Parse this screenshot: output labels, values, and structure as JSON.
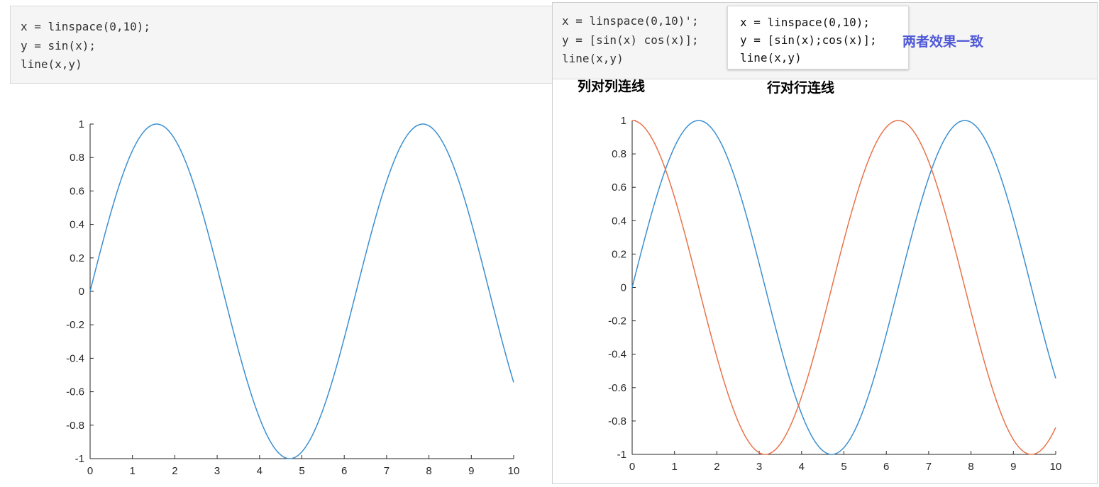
{
  "left_snippet": {
    "lines": [
      "x = linspace(0,10);",
      "y = sin(x);",
      "line(x,y)"
    ]
  },
  "right_snippet": {
    "lines": [
      "x = linspace(0,10)';",
      "y = [sin(x) cos(x)];",
      "line(x,y)"
    ]
  },
  "popup_snippet": {
    "lines": [
      "x = linspace(0,10);",
      "y = [sin(x);cos(x)];",
      "line(x,y)"
    ]
  },
  "annotations": {
    "same_effect": "两者效果一致",
    "col_to_col": "列对列连线",
    "row_to_row": "行对行连线"
  },
  "colors": {
    "sin": "#3b8fd0",
    "cos": "#e8734a"
  },
  "chart_data": [
    {
      "type": "line",
      "title": "",
      "xlabel": "",
      "ylabel": "",
      "xlim": [
        0,
        10
      ],
      "ylim": [
        -1,
        1
      ],
      "x_ticks": [
        "0",
        "1",
        "2",
        "3",
        "4",
        "5",
        "6",
        "7",
        "8",
        "9",
        "10"
      ],
      "y_ticks": [
        "-1",
        "-0.8",
        "-0.6",
        "-0.4",
        "-0.2",
        "0",
        "0.2",
        "0.4",
        "0.6",
        "0.8",
        "1"
      ],
      "grid": false,
      "series": [
        {
          "function": "sin",
          "color": "#3b8fd0",
          "x": [
            0,
            0.5,
            1,
            1.5,
            2,
            2.5,
            3,
            3.5,
            4,
            4.5,
            5,
            5.5,
            6,
            6.5,
            7,
            7.5,
            8,
            8.5,
            9,
            9.5,
            10
          ],
          "y": [
            0,
            0.479,
            0.841,
            0.997,
            0.909,
            0.598,
            0.141,
            -0.351,
            -0.757,
            -0.978,
            -0.959,
            -0.706,
            -0.279,
            0.215,
            0.657,
            0.938,
            0.989,
            0.798,
            0.412,
            -0.075,
            -0.544
          ]
        }
      ]
    },
    {
      "type": "line",
      "title": "",
      "xlabel": "",
      "ylabel": "",
      "xlim": [
        0,
        10
      ],
      "ylim": [
        -1,
        1
      ],
      "x_ticks": [
        "0",
        "1",
        "2",
        "3",
        "4",
        "5",
        "6",
        "7",
        "8",
        "9",
        "10"
      ],
      "y_ticks": [
        "-1",
        "-0.8",
        "-0.6",
        "-0.4",
        "-0.2",
        "0",
        "0.2",
        "0.4",
        "0.6",
        "0.8",
        "1"
      ],
      "grid": false,
      "series": [
        {
          "function": "sin",
          "color": "#3b8fd0",
          "x": [
            0,
            0.5,
            1,
            1.5,
            2,
            2.5,
            3,
            3.5,
            4,
            4.5,
            5,
            5.5,
            6,
            6.5,
            7,
            7.5,
            8,
            8.5,
            9,
            9.5,
            10
          ],
          "y": [
            0,
            0.479,
            0.841,
            0.997,
            0.909,
            0.598,
            0.141,
            -0.351,
            -0.757,
            -0.978,
            -0.959,
            -0.706,
            -0.279,
            0.215,
            0.657,
            0.938,
            0.989,
            0.798,
            0.412,
            -0.075,
            -0.544
          ]
        },
        {
          "function": "cos",
          "color": "#e8734a",
          "x": [
            0,
            0.5,
            1,
            1.5,
            2,
            2.5,
            3,
            3.5,
            4,
            4.5,
            5,
            5.5,
            6,
            6.5,
            7,
            7.5,
            8,
            8.5,
            9,
            9.5,
            10
          ],
          "y": [
            1,
            0.878,
            0.54,
            0.071,
            -0.416,
            -0.801,
            -0.99,
            -0.936,
            -0.654,
            -0.211,
            0.284,
            0.709,
            0.96,
            0.977,
            0.754,
            0.347,
            -0.146,
            -0.602,
            -0.911,
            -0.997,
            -0.839
          ]
        }
      ]
    }
  ]
}
